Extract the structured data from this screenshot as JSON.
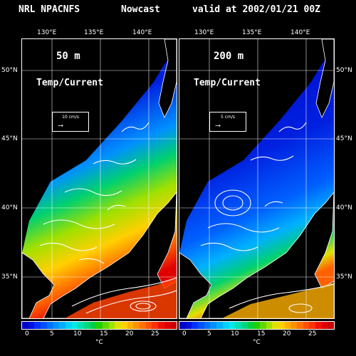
{
  "header": {
    "model": "NRL NPACNFS",
    "type": "Nowcast",
    "valid": "valid at 2002/01/21 00Z"
  },
  "longitude_labels": [
    "130°E",
    "135°E",
    "140°E"
  ],
  "latitude_labels": [
    "50°N",
    "45°N",
    "40°N",
    "35°N"
  ],
  "panels": [
    {
      "depth": "50 m",
      "subtitle": "Temp/Current",
      "scale_label": "10 cm/s",
      "arrow": "⟶"
    },
    {
      "depth": "200 m",
      "subtitle": "Temp/Current",
      "scale_label": "5 cm/s",
      "arrow": "⟶"
    }
  ],
  "colorbar": {
    "ticks": [
      "0",
      "5",
      "10",
      "15",
      "20",
      "25"
    ],
    "unit": "°C",
    "colors": [
      "#0000c8",
      "#0010e0",
      "#0030ff",
      "#0050ff",
      "#0070ff",
      "#0090ff",
      "#00b0ff",
      "#00d0ff",
      "#00e8e8",
      "#00e0b0",
      "#00d880",
      "#00d040",
      "#20d000",
      "#60d800",
      "#a0e000",
      "#e0e000",
      "#ffd000",
      "#ffb000",
      "#ff9000",
      "#ff7000",
      "#ff5000",
      "#ff3000",
      "#f01000",
      "#e00000",
      "#c80000"
    ]
  },
  "colors": {
    "cold": "#0020e0",
    "cool": "#00a0ff",
    "mild": "#00d070",
    "warm": "#e0e000",
    "hot": "#ff6000",
    "land": "#000000",
    "current": "#ffffff"
  }
}
